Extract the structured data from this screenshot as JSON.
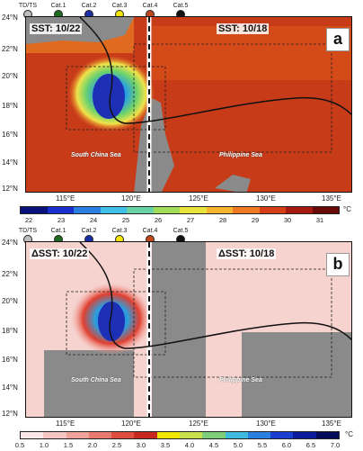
{
  "legend": [
    "TD/TS",
    "Cat.1",
    "Cat.2",
    "Cat.3",
    "Cat.4",
    "Cat.5"
  ],
  "legend_colors": [
    "#bdbdbd",
    "#1f6b1f",
    "#1a2fa8",
    "#f2e600",
    "#c0471c",
    "#111111"
  ],
  "panel_a": {
    "label": "a",
    "left_text": "SST: 10/22",
    "right_text": "SST: 10/18"
  },
  "panel_b": {
    "label": "b",
    "left_text": "ΔSST: 10/22",
    "right_text": "ΔSST: 10/18"
  },
  "sea_labels": {
    "scs": "South China Sea",
    "ps": "Philippine Sea"
  },
  "lat_labels": [
    "24°N",
    "22°N",
    "20°N",
    "18°N",
    "16°N",
    "14°N",
    "12°N"
  ],
  "lon_labels": [
    "115°E",
    "120°E",
    "125°E",
    "130°E",
    "135°E"
  ],
  "cbar_a": {
    "ticks": [
      "22",
      "23",
      "24",
      "25",
      "26",
      "27",
      "28",
      "29",
      "30",
      "31"
    ],
    "unit": "°C"
  },
  "cbar_b": {
    "ticks": [
      "0.5",
      "1.0",
      "1.5",
      "2.0",
      "2.5",
      "3.0",
      "3.5",
      "4.0",
      "4.5",
      "5.0",
      "5.5",
      "6.0",
      "6.5",
      "7.0"
    ],
    "unit": "°C"
  }
}
